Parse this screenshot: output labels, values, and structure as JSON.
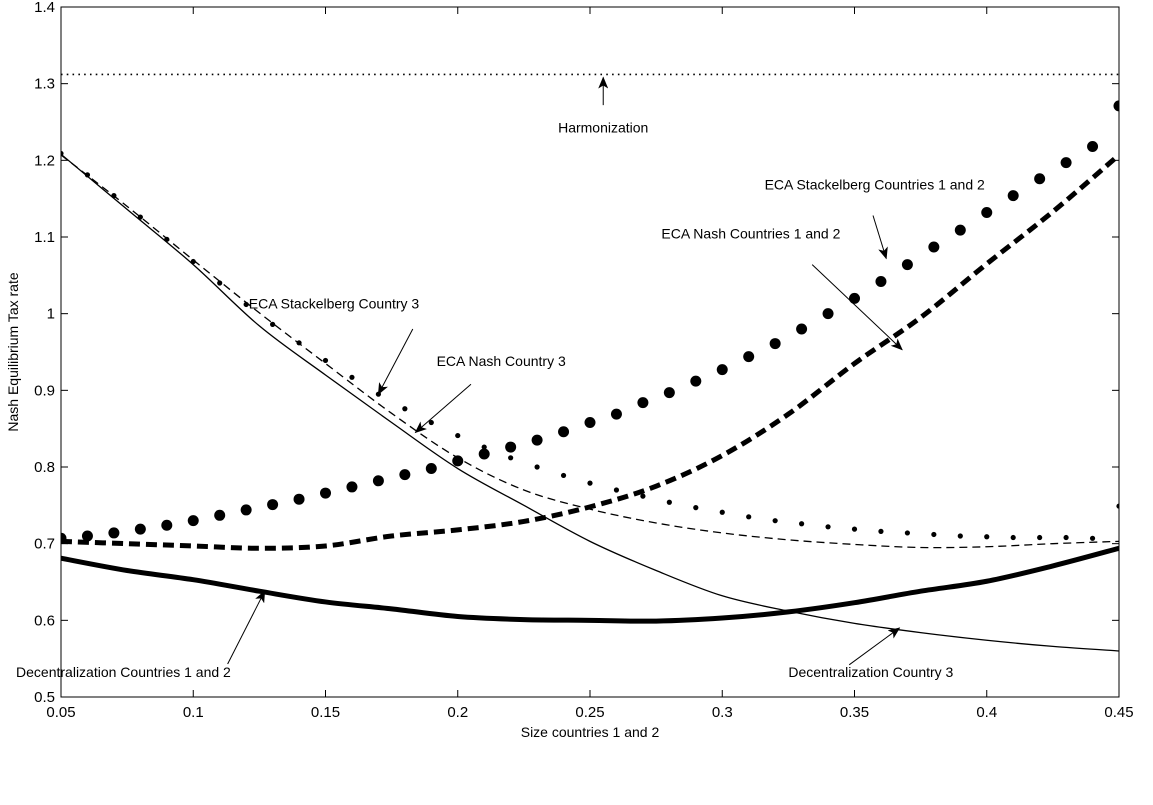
{
  "chart_data": {
    "type": "line",
    "title": "",
    "xlabel": "Size countries 1 and 2",
    "ylabel": "Nash Equilibrium Tax rate",
    "xlim": [
      0.05,
      0.45
    ],
    "ylim": [
      0.5,
      1.4
    ],
    "grid": false,
    "legend": "none",
    "x_ticks": [
      "0.05",
      "0.1",
      "0.15",
      "0.2",
      "0.25",
      "0.3",
      "0.35",
      "0.4",
      "0.45"
    ],
    "x_tick_values": [
      0.05,
      0.1,
      0.15,
      0.2,
      0.25,
      0.3,
      0.35,
      0.4,
      0.45
    ],
    "y_ticks": [
      "0.5",
      "0.6",
      "0.7",
      "0.8",
      "0.9",
      "1",
      "1.1",
      "1.2",
      "1.3",
      "1.4"
    ],
    "y_tick_values": [
      0.5,
      0.6,
      0.7,
      0.8,
      0.9,
      1.0,
      1.1,
      1.2,
      1.3,
      1.4
    ],
    "series": [
      {
        "style": "dotted-thin",
        "x": [
          0.05,
          0.45
        ],
        "y": [
          1.312,
          1.312
        ]
      },
      {
        "style": "large-dots",
        "x": [
          0.05,
          0.06,
          0.07,
          0.08,
          0.09,
          0.1,
          0.11,
          0.12,
          0.13,
          0.14,
          0.15,
          0.16,
          0.17,
          0.18,
          0.19,
          0.2,
          0.21,
          0.22,
          0.23,
          0.24,
          0.25,
          0.26,
          0.27,
          0.28,
          0.29,
          0.3,
          0.31,
          0.32,
          0.33,
          0.34,
          0.35,
          0.36,
          0.37,
          0.38,
          0.39,
          0.4,
          0.41,
          0.42,
          0.43,
          0.44,
          0.45
        ],
        "y": [
          0.707,
          0.71,
          0.714,
          0.719,
          0.724,
          0.73,
          0.737,
          0.744,
          0.751,
          0.758,
          0.766,
          0.774,
          0.782,
          0.79,
          0.798,
          0.808,
          0.817,
          0.826,
          0.835,
          0.846,
          0.858,
          0.869,
          0.884,
          0.897,
          0.912,
          0.927,
          0.944,
          0.961,
          0.98,
          1.0,
          1.02,
          1.042,
          1.064,
          1.087,
          1.109,
          1.132,
          1.154,
          1.176,
          1.197,
          1.218,
          1.271
        ]
      },
      {
        "style": "thick-dashed",
        "x": [
          0.05,
          0.075,
          0.1,
          0.125,
          0.15,
          0.175,
          0.2,
          0.225,
          0.25,
          0.275,
          0.3,
          0.325,
          0.35,
          0.375,
          0.4,
          0.425,
          0.45
        ],
        "y": [
          0.703,
          0.7,
          0.697,
          0.694,
          0.697,
          0.71,
          0.718,
          0.729,
          0.748,
          0.775,
          0.815,
          0.869,
          0.935,
          0.995,
          1.065,
          1.133,
          1.207
        ]
      },
      {
        "style": "small-dots",
        "x": [
          0.05,
          0.06,
          0.07,
          0.08,
          0.09,
          0.1,
          0.11,
          0.12,
          0.13,
          0.14,
          0.15,
          0.16,
          0.17,
          0.18,
          0.19,
          0.2,
          0.21,
          0.22,
          0.23,
          0.24,
          0.25,
          0.26,
          0.27,
          0.28,
          0.29,
          0.3,
          0.31,
          0.32,
          0.33,
          0.34,
          0.35,
          0.36,
          0.37,
          0.38,
          0.39,
          0.4,
          0.41,
          0.42,
          0.43,
          0.44,
          0.45
        ],
        "y": [
          1.209,
          1.181,
          1.154,
          1.126,
          1.097,
          1.068,
          1.04,
          1.012,
          0.986,
          0.962,
          0.939,
          0.917,
          0.895,
          0.876,
          0.858,
          0.841,
          0.826,
          0.812,
          0.8,
          0.789,
          0.779,
          0.77,
          0.762,
          0.754,
          0.747,
          0.741,
          0.735,
          0.73,
          0.726,
          0.722,
          0.719,
          0.716,
          0.714,
          0.712,
          0.71,
          0.709,
          0.708,
          0.708,
          0.708,
          0.707,
          0.749
        ]
      },
      {
        "style": "thin-dashed",
        "x": [
          0.05,
          0.075,
          0.1,
          0.125,
          0.15,
          0.175,
          0.2,
          0.225,
          0.25,
          0.275,
          0.3,
          0.325,
          0.35,
          0.375,
          0.4,
          0.425,
          0.45
        ],
        "y": [
          1.207,
          1.14,
          1.07,
          1.001,
          0.935,
          0.87,
          0.812,
          0.77,
          0.745,
          0.727,
          0.714,
          0.705,
          0.699,
          0.695,
          0.696,
          0.7,
          0.703
        ]
      },
      {
        "style": "thin-solid",
        "x": [
          0.05,
          0.075,
          0.1,
          0.125,
          0.15,
          0.175,
          0.2,
          0.225,
          0.25,
          0.275,
          0.3,
          0.325,
          0.35,
          0.375,
          0.4,
          0.425,
          0.45
        ],
        "y": [
          1.208,
          1.136,
          1.064,
          0.984,
          0.92,
          0.858,
          0.798,
          0.75,
          0.703,
          0.665,
          0.632,
          0.612,
          0.596,
          0.584,
          0.574,
          0.566,
          0.56
        ]
      },
      {
        "style": "thick-solid",
        "x": [
          0.05,
          0.075,
          0.1,
          0.125,
          0.15,
          0.175,
          0.2,
          0.225,
          0.25,
          0.275,
          0.3,
          0.325,
          0.35,
          0.375,
          0.4,
          0.425,
          0.45
        ],
        "y": [
          0.681,
          0.665,
          0.653,
          0.638,
          0.624,
          0.615,
          0.605,
          0.601,
          0.6,
          0.599,
          0.603,
          0.611,
          0.623,
          0.638,
          0.651,
          0.671,
          0.694
        ]
      }
    ],
    "annotations": [
      {
        "text": "Harmonization",
        "anchor": "middle",
        "text_x": 0.255,
        "text_y": 1.236,
        "arrow_from": [
          0.255,
          1.272
        ],
        "arrow_to": [
          0.255,
          1.308
        ]
      },
      {
        "text": "ECA Stackelberg Countries 1 and 2",
        "anchor": "start",
        "text_x": 0.316,
        "text_y": 1.162,
        "arrow_from": [
          0.357,
          1.128
        ],
        "arrow_to": [
          0.362,
          1.072
        ]
      },
      {
        "text": "ECA Nash Countries 1 and 2",
        "anchor": "start",
        "text_x": 0.277,
        "text_y": 1.098,
        "arrow_from": [
          0.334,
          1.064
        ],
        "arrow_to": [
          0.368,
          0.953
        ]
      },
      {
        "text": "ECA Stackelberg Country 3",
        "anchor": "start",
        "text_x": 0.121,
        "text_y": 1.007,
        "arrow_from": [
          0.183,
          0.98
        ],
        "arrow_to": [
          0.17,
          0.895
        ]
      },
      {
        "text": "ECA Nash Country 3",
        "anchor": "start",
        "text_x": 0.192,
        "text_y": 0.932,
        "arrow_from": [
          0.205,
          0.908
        ],
        "arrow_to": [
          0.184,
          0.845
        ]
      },
      {
        "text": "Decentralization Countries 1 and 2",
        "anchor": "start",
        "text_x": 0.033,
        "text_y": 0.526,
        "arrow_from": [
          0.113,
          0.543
        ],
        "arrow_to": [
          0.127,
          0.638
        ]
      },
      {
        "text": "Decentralization Country 3",
        "anchor": "start",
        "text_x": 0.325,
        "text_y": 0.526,
        "arrow_from": [
          0.348,
          0.542
        ],
        "arrow_to": [
          0.367,
          0.59
        ]
      }
    ]
  }
}
